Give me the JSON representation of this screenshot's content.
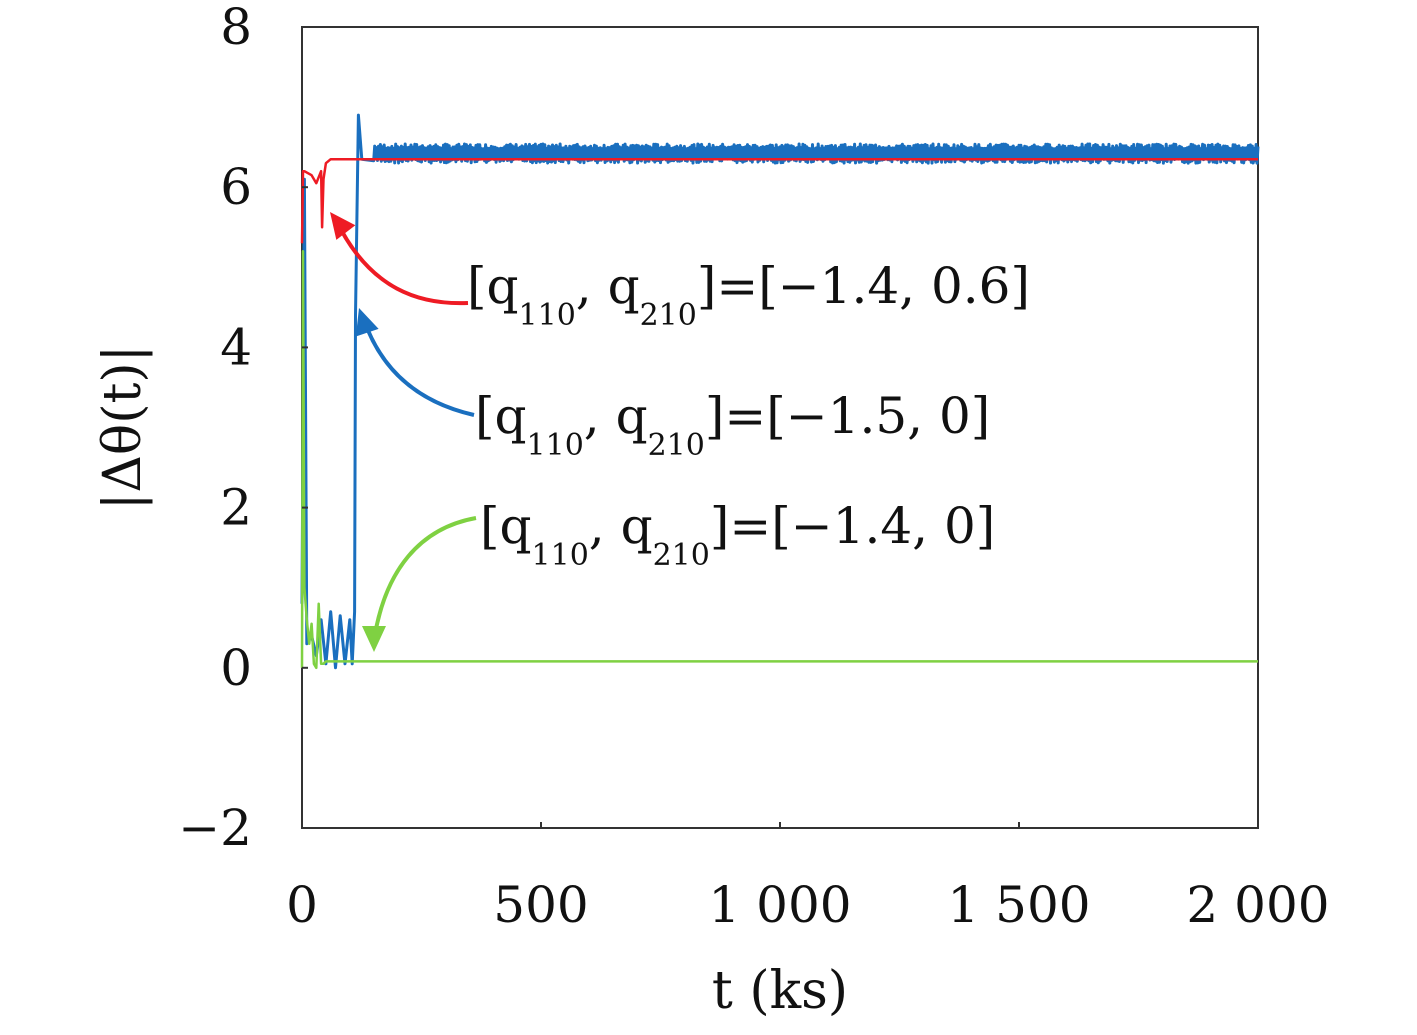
{
  "chart_data": {
    "type": "line",
    "xlabel": "t (ks)",
    "ylabel": "|Δθ(t)|",
    "xlim": [
      0,
      2000
    ],
    "ylim": [
      -2,
      8
    ],
    "xticks": [
      {
        "value": 0,
        "label": "0"
      },
      {
        "value": 500,
        "label": "500"
      },
      {
        "value": 1000,
        "label": "1 000"
      },
      {
        "value": 1500,
        "label": "1 500"
      },
      {
        "value": 2000,
        "label": "2 000"
      }
    ],
    "yticks": [
      {
        "value": -2,
        "label": "−2"
      },
      {
        "value": 0,
        "label": "0"
      },
      {
        "value": 2,
        "label": "2"
      },
      {
        "value": 4,
        "label": "4"
      },
      {
        "value": 6,
        "label": "6"
      },
      {
        "value": 8,
        "label": "8"
      }
    ],
    "grid": false,
    "series": [
      {
        "color": "#1a6fbf",
        "label_prefix": "[q",
        "label_sub1": "110",
        "label_mid": ", q",
        "label_sub2": "210",
        "label_suffix": "]=[−1.5, 0]",
        "x": [
          0,
          5,
          10,
          20,
          30,
          40,
          50,
          60,
          70,
          80,
          90,
          100,
          105,
          110,
          112,
          118,
          125,
          150,
          200,
          300,
          500,
          1000,
          1500,
          2000
        ],
        "y": [
          0.8,
          6.1,
          0.3,
          0.4,
          0.15,
          0.6,
          0.05,
          0.7,
          0.0,
          0.65,
          0.05,
          0.6,
          0.05,
          0.7,
          4.4,
          6.9,
          6.35,
          6.4,
          6.4,
          6.4,
          6.4,
          6.4,
          6.4,
          6.42
        ],
        "noise_amplitude_after_x": [
          150,
          0.12
        ]
      },
      {
        "color": "#ee1b24",
        "label_prefix": "[q",
        "label_sub1": "110",
        "label_mid": ", q",
        "label_sub2": "210",
        "label_suffix": "]=[−1.4, 0.6]",
        "x": [
          0,
          2,
          5,
          20,
          30,
          40,
          42,
          45,
          50,
          60,
          80,
          100,
          150,
          200,
          500,
          1000,
          1500,
          2000
        ],
        "y": [
          5.3,
          6.2,
          6.2,
          6.15,
          6.05,
          6.2,
          5.5,
          6.1,
          6.3,
          6.35,
          6.35,
          6.35,
          6.35,
          6.35,
          6.35,
          6.35,
          6.35,
          6.35
        ],
        "noise_amplitude_after_x": [
          2000,
          0
        ]
      },
      {
        "color": "#7fd142",
        "label_prefix": "[q",
        "label_sub1": "110",
        "label_mid": ", q",
        "label_sub2": "210",
        "label_suffix": "]=[−1.4, 0]",
        "x": [
          0,
          2,
          5,
          10,
          15,
          20,
          25,
          30,
          35,
          40,
          45,
          50,
          60,
          70,
          80,
          100,
          150,
          200,
          500,
          1000,
          1500,
          2000
        ],
        "y": [
          0.0,
          5.2,
          1.0,
          0.6,
          0.3,
          0.55,
          0.05,
          0.0,
          0.8,
          0.05,
          0.05,
          0.08,
          0.08,
          0.08,
          0.08,
          0.08,
          0.08,
          0.08,
          0.08,
          0.08,
          0.08,
          0.08
        ],
        "noise_amplitude_after_x": [
          2000,
          0
        ]
      }
    ]
  }
}
